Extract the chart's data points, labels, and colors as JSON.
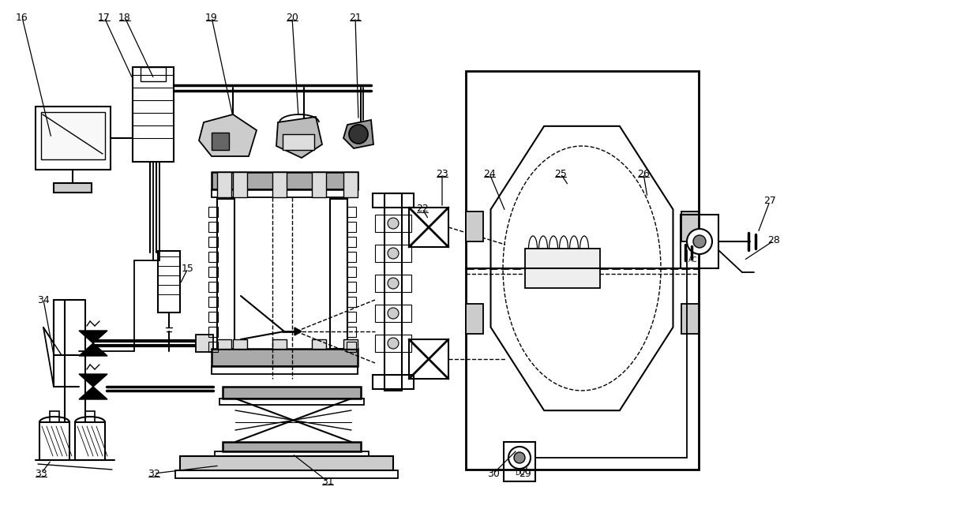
{
  "background": "#ffffff",
  "lc": "black",
  "fig_width": 12.4,
  "fig_height": 6.45,
  "dpi": 100,
  "xlim": [
    0,
    1240
  ],
  "ylim": [
    0,
    645
  ]
}
